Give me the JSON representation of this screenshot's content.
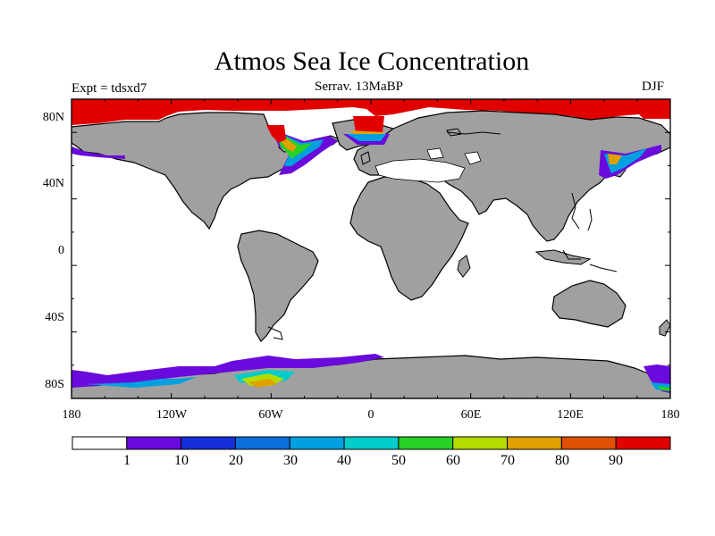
{
  "title": "Atmos Sea Ice Concentration",
  "experiment_label": "Expt = tdsxd7",
  "subtitle": "Serrav.   13MaBP",
  "season": "DJF",
  "axes": {
    "x_ticks": [
      "180",
      "120W",
      "60W",
      "0",
      "60E",
      "120E",
      "180"
    ],
    "y_ticks": [
      "80N",
      "40N",
      "0",
      "40S",
      "80S"
    ]
  },
  "colorbar": {
    "labels": [
      "1",
      "10",
      "20",
      "30",
      "40",
      "50",
      "60",
      "70",
      "80",
      "90"
    ],
    "colors": [
      "#ffffff",
      "#6a0adc",
      "#1530d8",
      "#0a6fd9",
      "#00a0e0",
      "#00cccc",
      "#28d028",
      "#b4dc00",
      "#e0a000",
      "#e05000",
      "#e00000"
    ]
  },
  "colors": {
    "land": "#a0a0a0",
    "coast": "#000000",
    "full_ice": "#e00000"
  }
}
